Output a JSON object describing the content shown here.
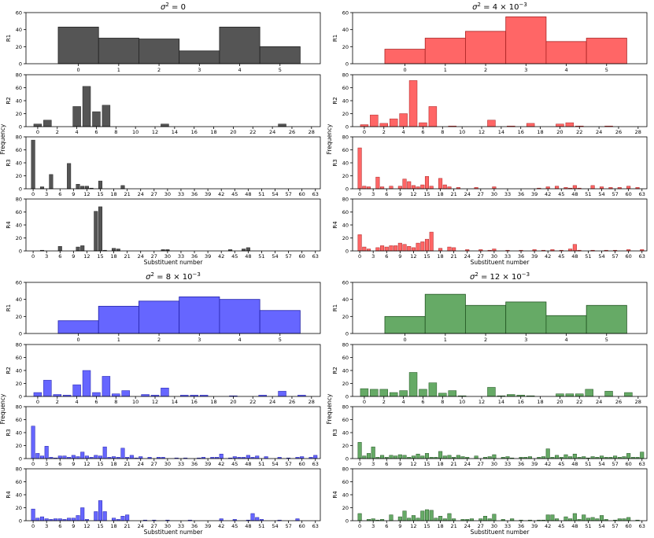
{
  "figure": {
    "groups": [
      {
        "id": "g0",
        "title_plain": "σ² = 0",
        "title_base": "σ",
        "title_sup1": "2",
        "title_mid": " = 0",
        "title_exp": "",
        "color": "#555555"
      },
      {
        "id": "g1",
        "title_plain": "σ² = 4 × 10⁻³",
        "title_base": "σ",
        "title_sup1": "2",
        "title_mid": " = 4 × 10",
        "title_exp": "−3",
        "color": "#ff6666"
      },
      {
        "id": "g2",
        "title_plain": "σ² = 8 × 10⁻³",
        "title_base": "σ",
        "title_sup1": "2",
        "title_mid": " = 8 × 10",
        "title_exp": "−3",
        "color": "#6666ff"
      },
      {
        "id": "g3",
        "title_plain": "σ² = 12 × 10⁻³",
        "title_base": "σ",
        "title_sup1": "2",
        "title_mid": " = 12 × 10",
        "title_exp": "−3",
        "color": "#66aa66"
      }
    ],
    "row_labels": [
      "R1",
      "R2",
      "R3",
      "R4"
    ],
    "frequency_label": "Frequency",
    "xlabel": "Substituent number"
  },
  "chart_data": [
    {
      "type": "bar",
      "group": "σ² = 0",
      "subplot": "R1",
      "ylabel": "R1",
      "ylim": [
        0,
        60
      ],
      "yticks": [
        0,
        20,
        40,
        60
      ],
      "categories": [
        0,
        1,
        2,
        3,
        4,
        5
      ],
      "values": [
        43,
        30,
        29,
        15,
        43,
        20
      ],
      "xticks": [
        0,
        1,
        2,
        3,
        4,
        5
      ]
    },
    {
      "type": "bar",
      "group": "σ² = 0",
      "subplot": "R2",
      "ylabel": "R2",
      "ylim": [
        0,
        80
      ],
      "yticks": [
        0,
        20,
        40,
        60,
        80
      ],
      "categories": [
        0,
        1,
        4,
        5,
        6,
        7,
        13,
        25
      ],
      "values": [
        4,
        10,
        31,
        62,
        23,
        33,
        4,
        4
      ],
      "xticks": [
        0,
        2,
        4,
        6,
        8,
        10,
        12,
        14,
        16,
        18,
        20,
        22,
        24,
        26,
        28
      ]
    },
    {
      "type": "bar",
      "group": "σ² = 0",
      "subplot": "R3",
      "ylabel": "R3",
      "ylim": [
        0,
        80
      ],
      "yticks": [
        0,
        20,
        40,
        60,
        80
      ],
      "categories": [
        0,
        2,
        4,
        8,
        10,
        11,
        12,
        13,
        15,
        20
      ],
      "values": [
        75,
        3,
        22,
        39,
        7,
        4,
        4,
        1,
        12,
        5
      ],
      "xticks": [
        0,
        3,
        6,
        9,
        12,
        15,
        18,
        21,
        24,
        27,
        30,
        33,
        36,
        39,
        42,
        45,
        48,
        51,
        54,
        57,
        60,
        63
      ]
    },
    {
      "type": "bar",
      "group": "σ² = 0",
      "subplot": "R4",
      "ylabel": "R4",
      "ylim": [
        0,
        80
      ],
      "yticks": [
        0,
        20,
        40,
        60,
        80
      ],
      "categories": [
        2,
        6,
        10,
        11,
        14,
        15,
        16,
        18,
        19,
        29,
        30,
        44,
        47,
        48
      ],
      "values": [
        1,
        7,
        6,
        8,
        61,
        68,
        1,
        4,
        3,
        2,
        2,
        2,
        3,
        5
      ],
      "xticks": [
        0,
        3,
        6,
        9,
        12,
        15,
        18,
        21,
        24,
        27,
        30,
        33,
        36,
        39,
        42,
        45,
        48,
        51,
        54,
        57,
        60,
        63
      ]
    },
    {
      "type": "bar",
      "group": "σ² = 4 × 10⁻³",
      "subplot": "R1",
      "ylabel": "R1",
      "ylim": [
        0,
        60
      ],
      "yticks": [
        0,
        20,
        40,
        60
      ],
      "categories": [
        0,
        1,
        2,
        3,
        4,
        5
      ],
      "values": [
        17,
        30,
        38,
        55,
        26,
        30
      ],
      "xticks": [
        0,
        1,
        2,
        3,
        4,
        5
      ]
    },
    {
      "type": "bar",
      "group": "σ² = 4 × 10⁻³",
      "subplot": "R2",
      "ylabel": "R2",
      "ylim": [
        0,
        80
      ],
      "yticks": [
        0,
        20,
        40,
        60,
        80
      ],
      "categories": [
        0,
        1,
        2,
        3,
        4,
        5,
        6,
        7,
        9,
        13,
        15,
        17,
        20,
        21,
        22,
        25
      ],
      "values": [
        3,
        18,
        5,
        12,
        20,
        71,
        6,
        31,
        1,
        10,
        1,
        5,
        4,
        6,
        1,
        1
      ],
      "xticks": [
        0,
        2,
        4,
        6,
        8,
        10,
        12,
        14,
        16,
        18,
        20,
        22,
        24,
        26,
        28
      ]
    },
    {
      "type": "bar",
      "group": "σ² = 4 × 10⁻³",
      "subplot": "R3",
      "ylabel": "R3",
      "ylim": [
        0,
        80
      ],
      "yticks": [
        0,
        20,
        40,
        60,
        80
      ],
      "categories": [
        0,
        1,
        2,
        4,
        5,
        7,
        9,
        10,
        11,
        12,
        13,
        14,
        15,
        16,
        18,
        19,
        20,
        22,
        26,
        30,
        40,
        42,
        44,
        46,
        47,
        48,
        49,
        52,
        54,
        56,
        58,
        60,
        62
      ],
      "values": [
        63,
        4,
        3,
        18,
        3,
        4,
        4,
        15,
        11,
        5,
        3,
        6,
        19,
        4,
        16,
        6,
        3,
        2,
        2,
        3,
        1,
        3,
        4,
        2,
        1,
        5,
        1,
        5,
        3,
        2,
        2,
        4,
        2
      ],
      "xticks": [
        0,
        3,
        6,
        9,
        12,
        15,
        18,
        21,
        24,
        27,
        30,
        33,
        36,
        39,
        42,
        45,
        48,
        51,
        54,
        57,
        60,
        63
      ]
    },
    {
      "type": "bar",
      "group": "σ² = 4 × 10⁻³",
      "subplot": "R4",
      "ylabel": "R4",
      "ylim": [
        0,
        80
      ],
      "yticks": [
        0,
        20,
        40,
        60,
        80
      ],
      "categories": [
        0,
        1,
        2,
        4,
        5,
        6,
        7,
        8,
        9,
        10,
        11,
        12,
        13,
        14,
        15,
        16,
        18,
        20,
        21,
        24,
        27,
        29,
        30,
        33,
        36,
        39,
        41,
        43,
        45,
        47,
        48,
        49,
        52,
        55,
        57,
        60,
        63
      ],
      "values": [
        25,
        6,
        3,
        5,
        8,
        6,
        8,
        8,
        12,
        10,
        7,
        5,
        12,
        14,
        18,
        29,
        4,
        6,
        5,
        2,
        2,
        1,
        3,
        1,
        1,
        2,
        1,
        2,
        1,
        3,
        10,
        1,
        1,
        1,
        1,
        2,
        2
      ],
      "xticks": [
        0,
        3,
        6,
        9,
        12,
        15,
        18,
        21,
        24,
        27,
        30,
        33,
        36,
        39,
        42,
        45,
        48,
        51,
        54,
        57,
        60,
        63
      ]
    },
    {
      "type": "bar",
      "group": "σ² = 8 × 10⁻³",
      "subplot": "R1",
      "ylabel": "R1",
      "ylim": [
        0,
        60
      ],
      "yticks": [
        0,
        20,
        40,
        60
      ],
      "categories": [
        0,
        1,
        2,
        3,
        4,
        5
      ],
      "values": [
        15,
        32,
        38,
        43,
        40,
        27
      ],
      "xticks": [
        0,
        1,
        2,
        3,
        4,
        5
      ]
    },
    {
      "type": "bar",
      "group": "σ² = 8 × 10⁻³",
      "subplot": "R2",
      "ylabel": "R2",
      "ylim": [
        0,
        80
      ],
      "yticks": [
        0,
        20,
        40,
        60,
        80
      ],
      "categories": [
        0,
        1,
        2,
        3,
        4,
        5,
        6,
        7,
        8,
        9,
        11,
        12,
        13,
        15,
        16,
        17,
        20,
        23,
        25,
        27
      ],
      "values": [
        6,
        25,
        3,
        2,
        18,
        40,
        6,
        31,
        4,
        9,
        3,
        2,
        13,
        2,
        2,
        2,
        1,
        2,
        8,
        2
      ],
      "xticks": [
        0,
        2,
        4,
        6,
        8,
        10,
        12,
        14,
        16,
        18,
        20,
        22,
        24,
        26,
        28
      ]
    },
    {
      "type": "bar",
      "group": "σ² = 8 × 10⁻³",
      "subplot": "R3",
      "ylabel": "R3",
      "ylim": [
        0,
        80
      ],
      "yticks": [
        0,
        20,
        40,
        60,
        80
      ],
      "categories": [
        0,
        1,
        2,
        3,
        4,
        5,
        6,
        7,
        8,
        9,
        10,
        11,
        12,
        13,
        14,
        15,
        16,
        17,
        18,
        19,
        20,
        21,
        22,
        23,
        24,
        26,
        28,
        29,
        32,
        34,
        37,
        38,
        40,
        41,
        42,
        44,
        45,
        46,
        47,
        48,
        49,
        50,
        52,
        55,
        57,
        59,
        60,
        62,
        63
      ],
      "values": [
        50,
        8,
        4,
        19,
        2,
        1,
        4,
        4,
        2,
        5,
        3,
        10,
        4,
        2,
        5,
        4,
        18,
        2,
        3,
        2,
        16,
        2,
        5,
        1,
        3,
        2,
        2,
        2,
        1,
        1,
        1,
        2,
        2,
        2,
        7,
        1,
        3,
        2,
        2,
        5,
        2,
        4,
        3,
        2,
        1,
        2,
        3,
        2,
        5
      ],
      "xticks": [
        0,
        3,
        6,
        9,
        12,
        15,
        18,
        21,
        24,
        27,
        30,
        33,
        36,
        39,
        42,
        45,
        48,
        51,
        54,
        57,
        60,
        63
      ]
    },
    {
      "type": "bar",
      "group": "σ² = 8 × 10⁻³",
      "subplot": "R4",
      "ylabel": "R4",
      "ylim": [
        0,
        80
      ],
      "yticks": [
        0,
        20,
        40,
        60,
        80
      ],
      "categories": [
        0,
        1,
        2,
        3,
        4,
        5,
        6,
        7,
        8,
        9,
        10,
        11,
        12,
        14,
        15,
        16,
        18,
        19,
        20,
        21,
        25,
        27,
        30,
        35,
        42,
        45,
        48,
        49,
        50,
        51,
        55,
        59
      ],
      "values": [
        18,
        4,
        6,
        3,
        2,
        3,
        3,
        2,
        4,
        4,
        8,
        20,
        2,
        14,
        31,
        14,
        4,
        2,
        7,
        9,
        1,
        1,
        1,
        1,
        3,
        2,
        1,
        11,
        5,
        2,
        1,
        3
      ],
      "xticks": [
        0,
        3,
        6,
        9,
        12,
        15,
        18,
        21,
        24,
        27,
        30,
        33,
        36,
        39,
        42,
        45,
        48,
        51,
        54,
        57,
        60,
        63
      ]
    },
    {
      "type": "bar",
      "group": "σ² = 12 × 10⁻³",
      "subplot": "R1",
      "ylabel": "R1",
      "ylim": [
        0,
        60
      ],
      "yticks": [
        0,
        20,
        40,
        60
      ],
      "categories": [
        0,
        1,
        2,
        3,
        4,
        5
      ],
      "values": [
        20,
        46,
        33,
        37,
        21,
        33
      ],
      "xticks": [
        0,
        1,
        2,
        3,
        4,
        5
      ]
    },
    {
      "type": "bar",
      "group": "σ² = 12 × 10⁻³",
      "subplot": "R2",
      "ylabel": "R2",
      "ylim": [
        0,
        80
      ],
      "yticks": [
        0,
        20,
        40,
        60,
        80
      ],
      "categories": [
        0,
        1,
        2,
        3,
        4,
        5,
        6,
        7,
        8,
        9,
        10,
        13,
        14,
        15,
        16,
        17,
        20,
        21,
        22,
        23,
        25,
        27
      ],
      "values": [
        12,
        11,
        11,
        6,
        9,
        37,
        11,
        21,
        5,
        9,
        1,
        14,
        1,
        3,
        2,
        1,
        4,
        4,
        4,
        11,
        8,
        6
      ],
      "xticks": [
        0,
        2,
        4,
        6,
        8,
        10,
        12,
        14,
        16,
        18,
        20,
        22,
        24,
        26,
        28
      ]
    },
    {
      "type": "bar",
      "group": "σ² = 12 × 10⁻³",
      "subplot": "R3",
      "ylabel": "R3",
      "ylim": [
        0,
        80
      ],
      "yticks": [
        0,
        20,
        40,
        60,
        80
      ],
      "categories": [
        0,
        1,
        2,
        3,
        4,
        5,
        6,
        7,
        8,
        9,
        10,
        11,
        12,
        13,
        14,
        15,
        16,
        17,
        18,
        19,
        20,
        21,
        22,
        23,
        24,
        26,
        28,
        29,
        30,
        32,
        33,
        34,
        36,
        37,
        38,
        40,
        41,
        42,
        43,
        44,
        45,
        46,
        47,
        48,
        49,
        50,
        51,
        52,
        53,
        54,
        55,
        56,
        57,
        58,
        59,
        60,
        61,
        62,
        63
      ],
      "values": [
        25,
        4,
        8,
        18,
        2,
        5,
        2,
        5,
        4,
        6,
        5,
        2,
        4,
        7,
        4,
        8,
        2,
        2,
        11,
        4,
        5,
        2,
        5,
        3,
        2,
        4,
        2,
        3,
        6,
        2,
        3,
        1,
        2,
        2,
        3,
        2,
        3,
        15,
        2,
        5,
        2,
        6,
        3,
        7,
        2,
        3,
        1,
        3,
        2,
        4,
        2,
        2,
        4,
        2,
        3,
        8,
        2,
        2,
        10
      ],
      "xticks": [
        0,
        3,
        6,
        9,
        12,
        15,
        18,
        21,
        24,
        27,
        30,
        33,
        36,
        39,
        42,
        45,
        48,
        51,
        54,
        57,
        60,
        63
      ]
    },
    {
      "type": "bar",
      "group": "σ² = 12 × 10⁻³",
      "subplot": "R4",
      "ylabel": "R4",
      "ylim": [
        0,
        80
      ],
      "yticks": [
        0,
        20,
        40,
        60,
        80
      ],
      "categories": [
        0,
        2,
        3,
        4,
        5,
        7,
        9,
        10,
        11,
        12,
        13,
        14,
        15,
        16,
        17,
        18,
        19,
        20,
        21,
        23,
        24,
        25,
        27,
        28,
        29,
        30,
        32,
        34,
        36,
        38,
        40,
        41,
        42,
        43,
        44,
        46,
        47,
        48,
        49,
        50,
        51,
        52,
        53,
        54,
        55,
        57,
        58,
        59,
        60,
        62
      ],
      "values": [
        11,
        2,
        3,
        1,
        2,
        9,
        6,
        15,
        4,
        8,
        4,
        15,
        17,
        16,
        4,
        7,
        3,
        11,
        3,
        2,
        2,
        3,
        3,
        7,
        3,
        10,
        2,
        3,
        1,
        1,
        1,
        1,
        9,
        9,
        3,
        6,
        3,
        11,
        2,
        9,
        4,
        5,
        3,
        8,
        2,
        1,
        3,
        3,
        5,
        1
      ],
      "xticks": [
        0,
        3,
        6,
        9,
        12,
        15,
        18,
        21,
        24,
        27,
        30,
        33,
        36,
        39,
        42,
        45,
        48,
        51,
        54,
        57,
        60,
        63
      ]
    }
  ]
}
